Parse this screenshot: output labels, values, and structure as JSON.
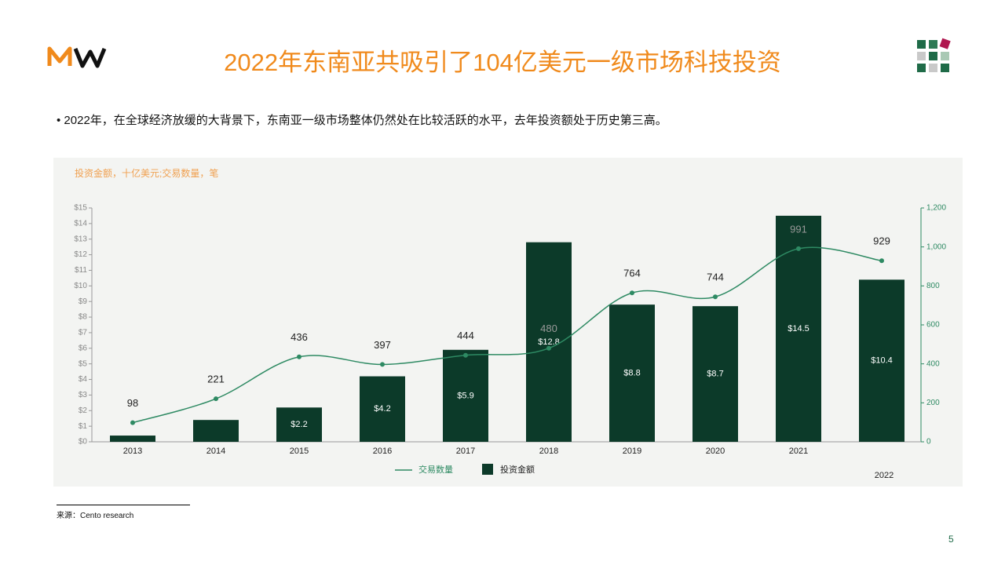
{
  "header": {
    "title": "2022年东南亚共吸引了104亿美元一级市场科技投资"
  },
  "bullet": "2022年，在全球经济放缓的大背景下，东南亚一级市场整体仍然处在比较活跃的水平，去年投资额处于历史第三高。",
  "chart_data": {
    "type": "combo",
    "axis_title": "投资金额，十亿美元;交易数量，笔",
    "categories": [
      "2013",
      "2014",
      "2015",
      "2016",
      "2017",
      "2018",
      "2019",
      "2020",
      "2021",
      "2022"
    ],
    "series": [
      {
        "name": "交易数量",
        "type": "line",
        "axis": "y2",
        "color": "#2e8a63",
        "values": [
          98,
          221,
          436,
          397,
          444,
          480,
          764,
          744,
          991,
          929
        ]
      },
      {
        "name": "投资金额",
        "type": "bar",
        "color": "#0c3a29",
        "values": [
          0.4,
          1.4,
          2.2,
          4.2,
          5.9,
          12.8,
          8.8,
          8.7,
          14.5,
          10.4
        ],
        "value_labels": [
          null,
          null,
          "$2.2",
          "$4.2",
          "$5.9",
          "$12.8",
          "$8.8",
          "$8.7",
          "$14.5",
          "$10.4"
        ]
      }
    ],
    "ylim": [
      0,
      15
    ],
    "yticks": [
      {
        "value": 0,
        "label": "$0"
      },
      {
        "value": 1,
        "label": "$1"
      },
      {
        "value": 2,
        "label": "$2"
      },
      {
        "value": 3,
        "label": "$3"
      },
      {
        "value": 4,
        "label": "$4"
      },
      {
        "value": 5,
        "label": "$5"
      },
      {
        "value": 6,
        "label": "$6"
      },
      {
        "value": 7,
        "label": "$7"
      },
      {
        "value": 8,
        "label": "$8"
      },
      {
        "value": 9,
        "label": "$9"
      },
      {
        "value": 10,
        "label": "$10"
      },
      {
        "value": 11,
        "label": "$11"
      },
      {
        "value": 12,
        "label": "$12"
      },
      {
        "value": 13,
        "label": "$13"
      },
      {
        "value": 14,
        "label": "$14"
      },
      {
        "value": 15,
        "label": "$15"
      }
    ],
    "y2lim": [
      0,
      1200
    ],
    "y2ticks": [
      0,
      200,
      400,
      600,
      800,
      {
        "value": 1000,
        "label": "1,000"
      },
      {
        "value": 1200,
        "label": "1,200"
      }
    ]
  },
  "source": "来源：Cento research",
  "page_number": "5"
}
